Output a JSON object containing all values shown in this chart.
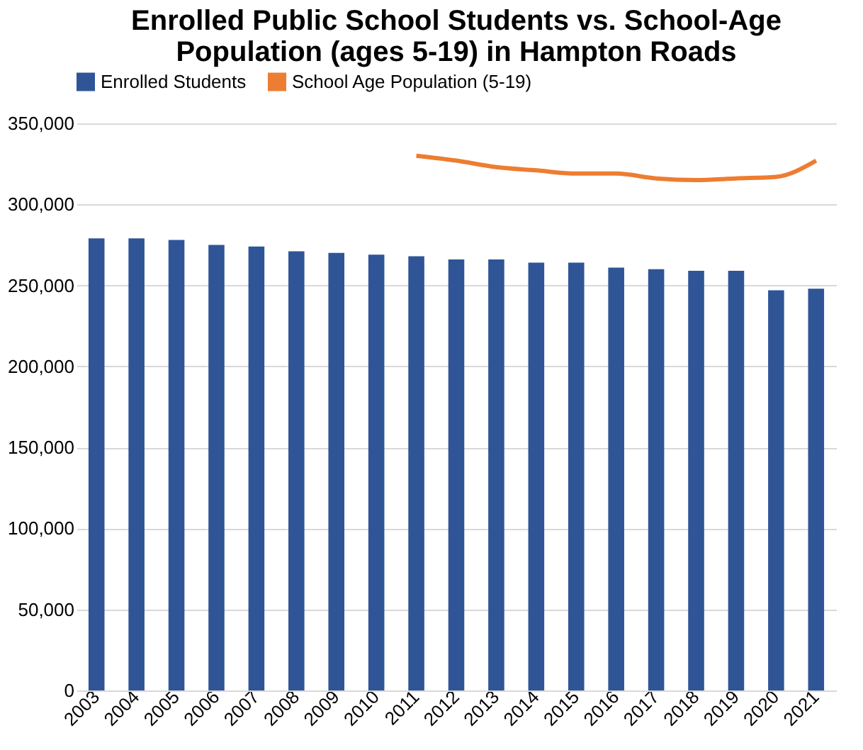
{
  "chart_data": {
    "type": "bar",
    "title": "Enrolled Public School Students vs. School-Age Population (ages 5-19) in Hampton Roads",
    "categories": [
      "2003",
      "2004",
      "2005",
      "2006",
      "2007",
      "2008",
      "2009",
      "2010",
      "2011",
      "2012",
      "2013",
      "2014",
      "2015",
      "2016",
      "2017",
      "2018",
      "2019",
      "2020",
      "2021"
    ],
    "series": [
      {
        "name": "Enrolled Students",
        "color": "#2f5597",
        "values": [
          279000,
          279000,
          278000,
          275000,
          274000,
          271000,
          270000,
          269000,
          268000,
          266000,
          266000,
          264000,
          264000,
          261000,
          260000,
          259000,
          259000,
          247000,
          248000
        ]
      },
      {
        "name": "School Age Population (5-19)",
        "type": "line",
        "color": "#ed7d31",
        "values": [
          null,
          null,
          null,
          null,
          null,
          null,
          null,
          null,
          330000,
          327000,
          323000,
          321000,
          319000,
          319000,
          316000,
          315000,
          316000,
          317000,
          327000
        ]
      }
    ],
    "ylim": [
      0,
      350000
    ],
    "yticks": [
      0,
      {
        "value": 50000,
        "label": "50,000"
      },
      {
        "value": 100000,
        "label": "100,000"
      },
      {
        "value": 150000,
        "label": "150,000"
      },
      {
        "value": 200000,
        "label": "200,000"
      },
      {
        "value": 250000,
        "label": "250,000"
      },
      {
        "value": 300000,
        "label": "300,000"
      },
      {
        "value": 350000,
        "label": "350,000"
      }
    ],
    "grid": "y",
    "legend": "top"
  }
}
